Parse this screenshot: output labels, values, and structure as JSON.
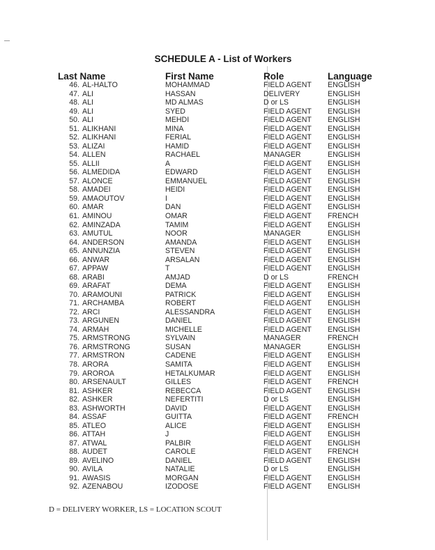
{
  "title": "SCHEDULE A -  List of Workers",
  "headers": {
    "last_name": "Last Name",
    "first_name": "First Name",
    "role": "Role",
    "language": "Language"
  },
  "rows": [
    [
      "46.",
      "AL-HALTO",
      "MOHAMMAD",
      "FIELD AGENT",
      "ENGLISH"
    ],
    [
      "47.",
      "ALI",
      "HASSAN",
      "DELIVERY",
      "ENGLISH"
    ],
    [
      "48.",
      "ALI",
      "MD ALMAS",
      "D or LS",
      "ENGLISH"
    ],
    [
      "49.",
      "ALI",
      "SYED",
      "FIELD AGENT",
      "ENGLISH"
    ],
    [
      "50.",
      "ALI",
      "MEHDI",
      "FIELD AGENT",
      "ENGLISH"
    ],
    [
      "51.",
      "ALIKHANI",
      "MINA",
      "FIELD AGENT",
      "ENGLISH"
    ],
    [
      "52.",
      "ALIKHANI",
      "FERIAL",
      "FIELD AGENT",
      "ENGLISH"
    ],
    [
      "53.",
      "ALIZAI",
      "HAMID",
      "FIELD AGENT",
      "ENGLISH"
    ],
    [
      "54.",
      "ALLEN",
      "RACHAEL",
      "MANAGER",
      "ENGLISH"
    ],
    [
      "55.",
      "ALLII",
      "A",
      "FIELD AGENT",
      "ENGLISH"
    ],
    [
      "56.",
      "ALMEDIDA",
      "EDWARD",
      "FIELD AGENT",
      "ENGLISH"
    ],
    [
      "57.",
      "ALONCE",
      "EMMANUEL",
      "FIELD AGENT",
      "ENGLISH"
    ],
    [
      "58.",
      "AMADEI",
      "HEIDI",
      "FIELD AGENT",
      "ENGLISH"
    ],
    [
      "59.",
      "AMAOUTOV",
      "I",
      "FIELD AGENT",
      "ENGLISH"
    ],
    [
      "60.",
      "AMAR",
      "DAN",
      "FIELD AGENT",
      "ENGLISH"
    ],
    [
      "61.",
      "AMINOU",
      "OMAR",
      "FIELD AGENT",
      "FRENCH"
    ],
    [
      "62.",
      "AMINZADA",
      "TAMIM",
      "FIELD AGENT",
      "ENGLISH"
    ],
    [
      "63.",
      "AMUTUL",
      "NOOR",
      "MANAGER",
      "ENGLISH"
    ],
    [
      "64.",
      "ANDERSON",
      "AMANDA",
      "FIELD AGENT",
      "ENGLISH"
    ],
    [
      "65.",
      "ANNUNZIA",
      "STEVEN",
      "FIELD AGENT",
      "ENGLISH"
    ],
    [
      "66.",
      "ANWAR",
      "ARSALAN",
      "FIELD AGENT",
      "ENGLISH"
    ],
    [
      "67.",
      "APPAW",
      "T",
      "FIELD AGENT",
      "ENGLISH"
    ],
    [
      "68.",
      "ARABI",
      "AMJAD",
      "D or LS",
      "FRENCH"
    ],
    [
      "69.",
      "ARAFAT",
      "DEMA",
      "FIELD AGENT",
      "ENGLISH"
    ],
    [
      "70.",
      "ARAMOUNI",
      "PATRICK",
      "FIELD AGENT",
      "ENGLISH"
    ],
    [
      "71.",
      "ARCHAMBA",
      "ROBERT",
      "FIELD AGENT",
      "ENGLISH"
    ],
    [
      "72.",
      "ARCI",
      "ALESSANDRA",
      "FIELD AGENT",
      "ENGLISH"
    ],
    [
      "73.",
      "ARGUNEN",
      "DANIEL",
      "FIELD AGENT",
      "ENGLISH"
    ],
    [
      "74.",
      "ARMAH",
      "MICHELLE",
      "FIELD AGENT",
      "ENGLISH"
    ],
    [
      "75.",
      "ARMSTRONG",
      "SYLVAIN",
      "MANAGER",
      "FRENCH"
    ],
    [
      "76.",
      "ARMSTRONG",
      "SUSAN",
      "MANAGER",
      "ENGLISH"
    ],
    [
      "77.",
      "ARMSTRON",
      "CADENE",
      "FIELD AGENT",
      "ENGLISH"
    ],
    [
      "78.",
      "ARORA",
      "SAMITA",
      "FIELD AGENT",
      "ENGLISH"
    ],
    [
      "79.",
      "AROROA",
      "HETALKUMAR",
      "FIELD AGENT",
      "ENGLISH"
    ],
    [
      "80.",
      "ARSENAULT",
      "GILLES",
      "FIELD AGENT",
      "FRENCH"
    ],
    [
      "81.",
      "ASHKER",
      "REBECCA",
      "FIELD AGENT",
      "ENGLISH"
    ],
    [
      "82.",
      "ASHKER",
      "NEFERTITI",
      "D or LS",
      "ENGLISH"
    ],
    [
      "83.",
      "ASHWORTH",
      "DAVID",
      "FIELD AGENT",
      "ENGLISH"
    ],
    [
      "84.",
      "ASSAF",
      "GUITTA",
      "FIELD AGENT",
      "FRENCH"
    ],
    [
      "85.",
      "ATLEO",
      "ALICE",
      "FIELD AGENT",
      "ENGLISH"
    ],
    [
      "86.",
      "ATTAH",
      "J",
      "FIELD AGENT",
      "ENGLISH"
    ],
    [
      "87.",
      "ATWAL",
      "PALBIR",
      "FIELD AGENT",
      "ENGLISH"
    ],
    [
      "88.",
      "AUDET",
      "CAROLE",
      "FIELD AGENT",
      "FRENCH"
    ],
    [
      "89.",
      "AVELINO",
      "DANIEL",
      "FIELD AGENT",
      "ENGLISH"
    ],
    [
      "90.",
      "AVILA",
      "NATALIE",
      "D or LS",
      "ENGLISH"
    ],
    [
      "91.",
      "AWASIS",
      "MORGAN",
      "FIELD AGENT",
      "ENGLISH"
    ],
    [
      "92.",
      "AZENABOU",
      "IZODOSE",
      "FIELD AGENT",
      "ENGLISH"
    ]
  ],
  "footnote": "D = DELIVERY WORKER, LS = LOCATION SCOUT"
}
